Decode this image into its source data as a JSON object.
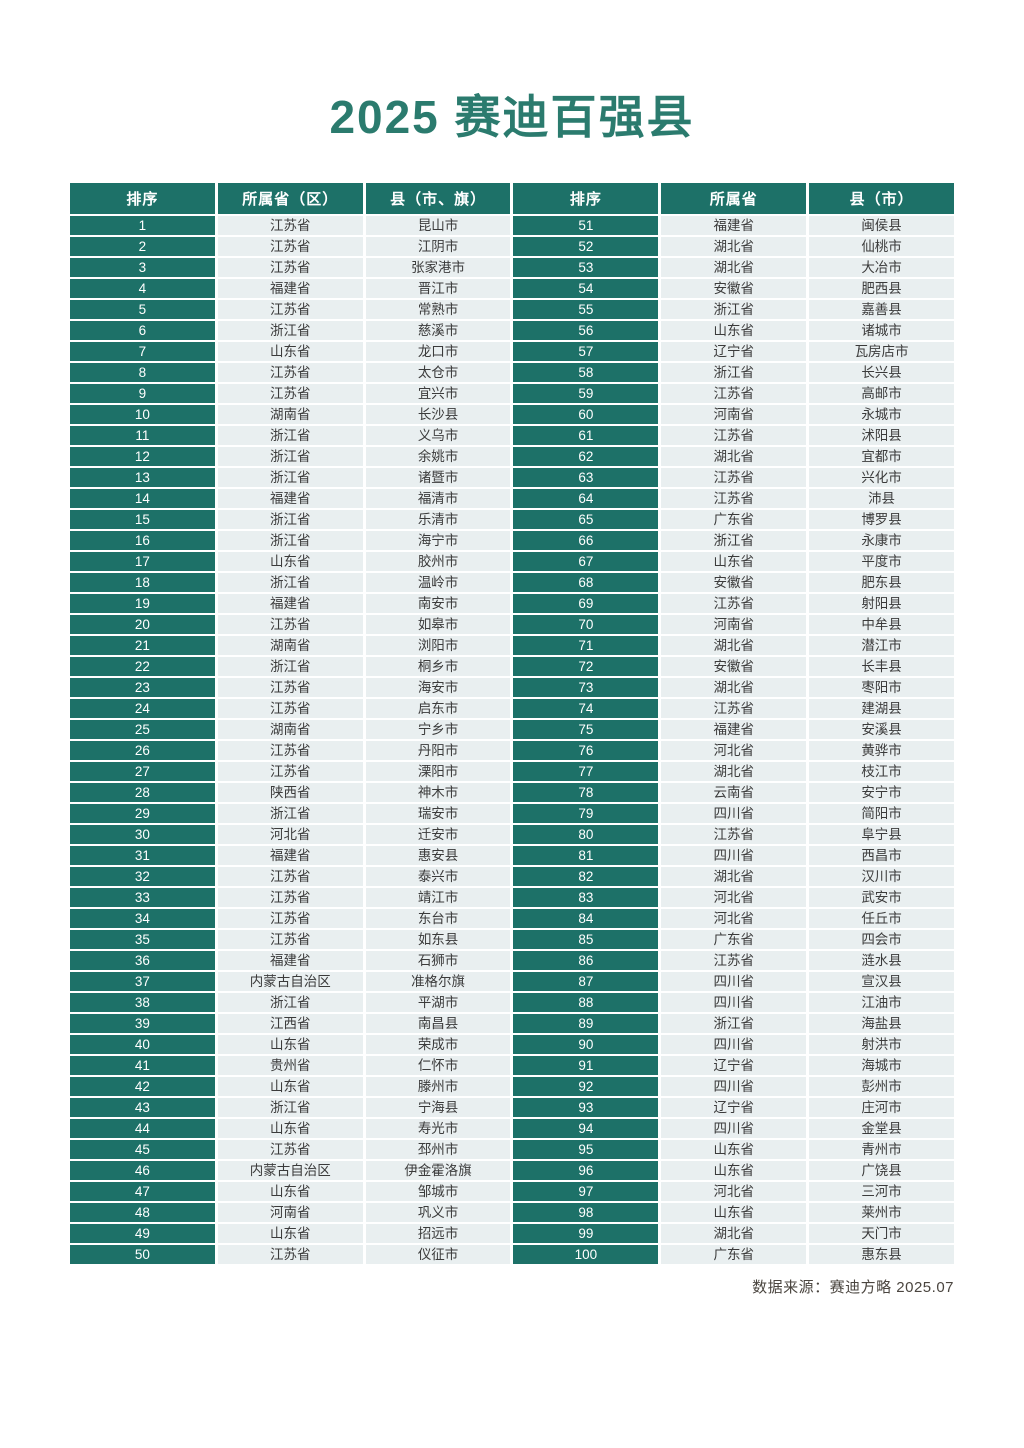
{
  "page": {
    "title": "2025 赛迪百强县",
    "source_note": "数据来源：赛迪方略 2025.07"
  },
  "colors": {
    "accent_teal": "#1d7168",
    "title_teal": "#2b7b6e",
    "cell_light": "#e9eff0",
    "cell_text": "#3b3b3b",
    "note_text": "#4a453f"
  },
  "table": {
    "headers": [
      "排序",
      "所属省（区）",
      "县（市、旗）",
      "排序",
      "所属省",
      "县（市）"
    ],
    "left_rows": [
      {
        "rank": "1",
        "province": "江苏省",
        "county": "昆山市"
      },
      {
        "rank": "2",
        "province": "江苏省",
        "county": "江阴市"
      },
      {
        "rank": "3",
        "province": "江苏省",
        "county": "张家港市"
      },
      {
        "rank": "4",
        "province": "福建省",
        "county": "晋江市"
      },
      {
        "rank": "5",
        "province": "江苏省",
        "county": "常熟市"
      },
      {
        "rank": "6",
        "province": "浙江省",
        "county": "慈溪市"
      },
      {
        "rank": "7",
        "province": "山东省",
        "county": "龙口市"
      },
      {
        "rank": "8",
        "province": "江苏省",
        "county": "太仓市"
      },
      {
        "rank": "9",
        "province": "江苏省",
        "county": "宜兴市"
      },
      {
        "rank": "10",
        "province": "湖南省",
        "county": "长沙县"
      },
      {
        "rank": "11",
        "province": "浙江省",
        "county": "义乌市"
      },
      {
        "rank": "12",
        "province": "浙江省",
        "county": "余姚市"
      },
      {
        "rank": "13",
        "province": "浙江省",
        "county": "诸暨市"
      },
      {
        "rank": "14",
        "province": "福建省",
        "county": "福清市"
      },
      {
        "rank": "15",
        "province": "浙江省",
        "county": "乐清市"
      },
      {
        "rank": "16",
        "province": "浙江省",
        "county": "海宁市"
      },
      {
        "rank": "17",
        "province": "山东省",
        "county": "胶州市"
      },
      {
        "rank": "18",
        "province": "浙江省",
        "county": "温岭市"
      },
      {
        "rank": "19",
        "province": "福建省",
        "county": "南安市"
      },
      {
        "rank": "20",
        "province": "江苏省",
        "county": "如皋市"
      },
      {
        "rank": "21",
        "province": "湖南省",
        "county": "浏阳市"
      },
      {
        "rank": "22",
        "province": "浙江省",
        "county": "桐乡市"
      },
      {
        "rank": "23",
        "province": "江苏省",
        "county": "海安市"
      },
      {
        "rank": "24",
        "province": "江苏省",
        "county": "启东市"
      },
      {
        "rank": "25",
        "province": "湖南省",
        "county": "宁乡市"
      },
      {
        "rank": "26",
        "province": "江苏省",
        "county": "丹阳市"
      },
      {
        "rank": "27",
        "province": "江苏省",
        "county": "溧阳市"
      },
      {
        "rank": "28",
        "province": "陕西省",
        "county": "神木市"
      },
      {
        "rank": "29",
        "province": "浙江省",
        "county": "瑞安市"
      },
      {
        "rank": "30",
        "province": "河北省",
        "county": "迁安市"
      },
      {
        "rank": "31",
        "province": "福建省",
        "county": "惠安县"
      },
      {
        "rank": "32",
        "province": "江苏省",
        "county": "泰兴市"
      },
      {
        "rank": "33",
        "province": "江苏省",
        "county": "靖江市"
      },
      {
        "rank": "34",
        "province": "江苏省",
        "county": "东台市"
      },
      {
        "rank": "35",
        "province": "江苏省",
        "county": "如东县"
      },
      {
        "rank": "36",
        "province": "福建省",
        "county": "石狮市"
      },
      {
        "rank": "37",
        "province": "内蒙古自治区",
        "county": "准格尔旗"
      },
      {
        "rank": "38",
        "province": "浙江省",
        "county": "平湖市"
      },
      {
        "rank": "39",
        "province": "江西省",
        "county": "南昌县"
      },
      {
        "rank": "40",
        "province": "山东省",
        "county": "荣成市"
      },
      {
        "rank": "41",
        "province": "贵州省",
        "county": "仁怀市"
      },
      {
        "rank": "42",
        "province": "山东省",
        "county": "滕州市"
      },
      {
        "rank": "43",
        "province": "浙江省",
        "county": "宁海县"
      },
      {
        "rank": "44",
        "province": "山东省",
        "county": "寿光市"
      },
      {
        "rank": "45",
        "province": "江苏省",
        "county": "邳州市"
      },
      {
        "rank": "46",
        "province": "内蒙古自治区",
        "county": "伊金霍洛旗"
      },
      {
        "rank": "47",
        "province": "山东省",
        "county": "邹城市"
      },
      {
        "rank": "48",
        "province": "河南省",
        "county": "巩义市"
      },
      {
        "rank": "49",
        "province": "山东省",
        "county": "招远市"
      },
      {
        "rank": "50",
        "province": "江苏省",
        "county": "仪征市"
      }
    ],
    "right_rows": [
      {
        "rank": "51",
        "province": "福建省",
        "county": "闽侯县"
      },
      {
        "rank": "52",
        "province": "湖北省",
        "county": "仙桃市"
      },
      {
        "rank": "53",
        "province": "湖北省",
        "county": "大冶市"
      },
      {
        "rank": "54",
        "province": "安徽省",
        "county": "肥西县"
      },
      {
        "rank": "55",
        "province": "浙江省",
        "county": "嘉善县"
      },
      {
        "rank": "56",
        "province": "山东省",
        "county": "诸城市"
      },
      {
        "rank": "57",
        "province": "辽宁省",
        "county": "瓦房店市"
      },
      {
        "rank": "58",
        "province": "浙江省",
        "county": "长兴县"
      },
      {
        "rank": "59",
        "province": "江苏省",
        "county": "高邮市"
      },
      {
        "rank": "60",
        "province": "河南省",
        "county": "永城市"
      },
      {
        "rank": "61",
        "province": "江苏省",
        "county": "沭阳县"
      },
      {
        "rank": "62",
        "province": "湖北省",
        "county": "宜都市"
      },
      {
        "rank": "63",
        "province": "江苏省",
        "county": "兴化市"
      },
      {
        "rank": "64",
        "province": "江苏省",
        "county": "沛县"
      },
      {
        "rank": "65",
        "province": "广东省",
        "county": "博罗县"
      },
      {
        "rank": "66",
        "province": "浙江省",
        "county": "永康市"
      },
      {
        "rank": "67",
        "province": "山东省",
        "county": "平度市"
      },
      {
        "rank": "68",
        "province": "安徽省",
        "county": "肥东县"
      },
      {
        "rank": "69",
        "province": "江苏省",
        "county": "射阳县"
      },
      {
        "rank": "70",
        "province": "河南省",
        "county": "中牟县"
      },
      {
        "rank": "71",
        "province": "湖北省",
        "county": "潜江市"
      },
      {
        "rank": "72",
        "province": "安徽省",
        "county": "长丰县"
      },
      {
        "rank": "73",
        "province": "湖北省",
        "county": "枣阳市"
      },
      {
        "rank": "74",
        "province": "江苏省",
        "county": "建湖县"
      },
      {
        "rank": "75",
        "province": "福建省",
        "county": "安溪县"
      },
      {
        "rank": "76",
        "province": "河北省",
        "county": "黄骅市"
      },
      {
        "rank": "77",
        "province": "湖北省",
        "county": "枝江市"
      },
      {
        "rank": "78",
        "province": "云南省",
        "county": "安宁市"
      },
      {
        "rank": "79",
        "province": "四川省",
        "county": "简阳市"
      },
      {
        "rank": "80",
        "province": "江苏省",
        "county": "阜宁县"
      },
      {
        "rank": "81",
        "province": "四川省",
        "county": "西昌市"
      },
      {
        "rank": "82",
        "province": "湖北省",
        "county": "汉川市"
      },
      {
        "rank": "83",
        "province": "河北省",
        "county": "武安市"
      },
      {
        "rank": "84",
        "province": "河北省",
        "county": "任丘市"
      },
      {
        "rank": "85",
        "province": "广东省",
        "county": "四会市"
      },
      {
        "rank": "86",
        "province": "江苏省",
        "county": "涟水县"
      },
      {
        "rank": "87",
        "province": "四川省",
        "county": "宣汉县"
      },
      {
        "rank": "88",
        "province": "四川省",
        "county": "江油市"
      },
      {
        "rank": "89",
        "province": "浙江省",
        "county": "海盐县"
      },
      {
        "rank": "90",
        "province": "四川省",
        "county": "射洪市"
      },
      {
        "rank": "91",
        "province": "辽宁省",
        "county": "海城市"
      },
      {
        "rank": "92",
        "province": "四川省",
        "county": "彭州市"
      },
      {
        "rank": "93",
        "province": "辽宁省",
        "county": "庄河市"
      },
      {
        "rank": "94",
        "province": "四川省",
        "county": "金堂县"
      },
      {
        "rank": "95",
        "province": "山东省",
        "county": "青州市"
      },
      {
        "rank": "96",
        "province": "山东省",
        "county": "广饶县"
      },
      {
        "rank": "97",
        "province": "河北省",
        "county": "三河市"
      },
      {
        "rank": "98",
        "province": "山东省",
        "county": "莱州市"
      },
      {
        "rank": "99",
        "province": "湖北省",
        "county": "天门市"
      },
      {
        "rank": "100",
        "province": "广东省",
        "county": "惠东县"
      }
    ]
  }
}
